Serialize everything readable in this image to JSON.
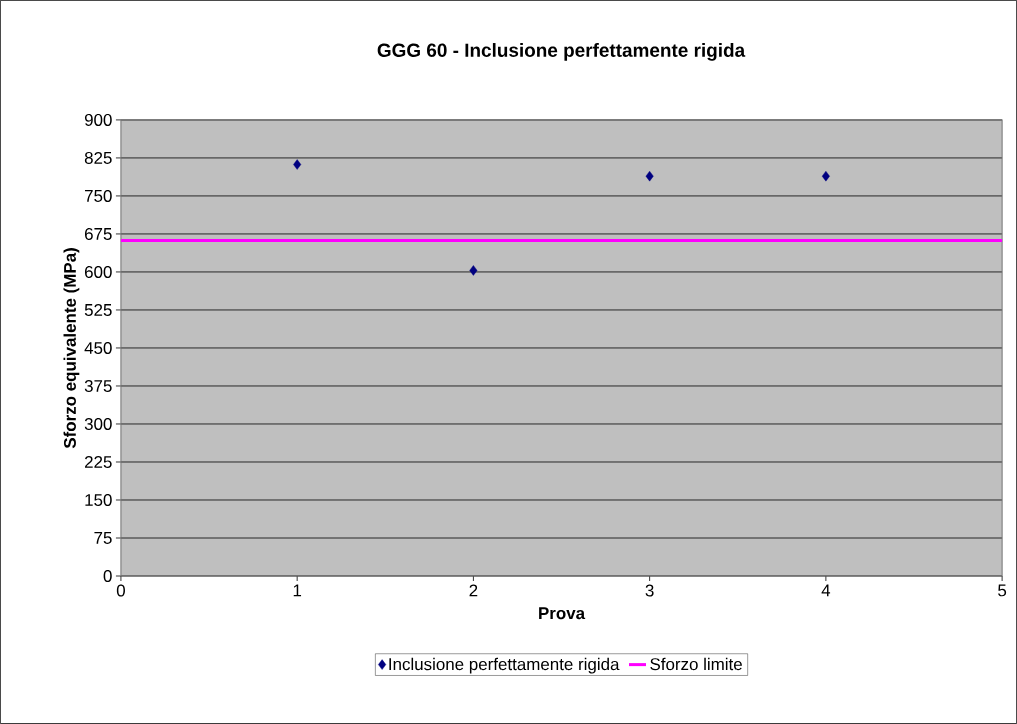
{
  "chart_data": {
    "type": "scatter",
    "title": "GGG 60 - Inclusione perfettamente rigida",
    "xlabel": "Prova",
    "ylabel": "Sforzo equivalente (MPa)",
    "xlim": [
      0,
      5
    ],
    "xticks": [
      0,
      1,
      2,
      3,
      4,
      5
    ],
    "ylim": [
      0,
      900
    ],
    "yticks": [
      0,
      75,
      150,
      225,
      300,
      375,
      450,
      525,
      600,
      675,
      750,
      825,
      900
    ],
    "grid": "y",
    "legend": "bottom",
    "series": [
      {
        "name": "Inclusione perfettamente rigida",
        "color": "#000080",
        "marker": "diamond",
        "x": [
          1,
          2,
          3,
          4
        ],
        "values": [
          812,
          603,
          789,
          789
        ]
      },
      {
        "name": "Sforzo limite",
        "type": "line",
        "color": "#ff00ff",
        "marker": "none",
        "x": [
          0,
          5
        ],
        "values": [
          662,
          662
        ]
      }
    ]
  }
}
